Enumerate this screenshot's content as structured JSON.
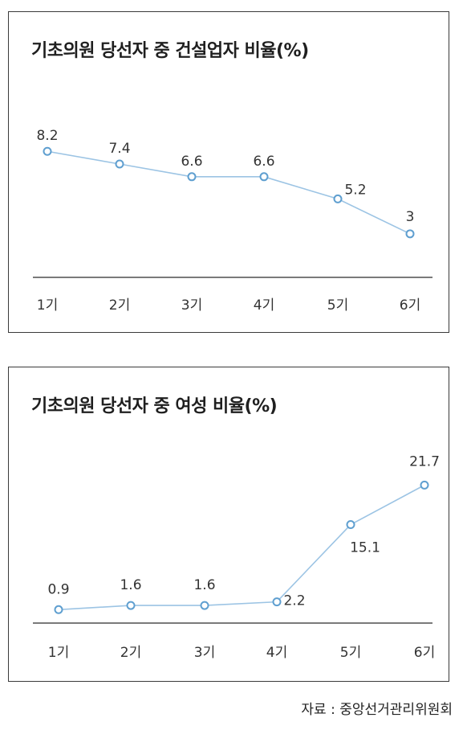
{
  "chart_data": [
    {
      "type": "line",
      "title": "기초의원 당선자 중 건설업자 비율(%)",
      "categories": [
        "1기",
        "2기",
        "3기",
        "4기",
        "5기",
        "6기"
      ],
      "values": [
        8.2,
        7.4,
        6.6,
        6.6,
        5.2,
        3
      ],
      "value_labels": [
        "8.2",
        "7.4",
        "6.6",
        "6.6",
        "5.2",
        "3"
      ],
      "ylim": [
        0,
        11
      ],
      "grid": false,
      "colors": {
        "line": "#9cc4e4",
        "marker": "#5f9fd0"
      }
    },
    {
      "type": "line",
      "title": "기초의원 당선자 중 여성 비율(%)",
      "categories": [
        "1기",
        "2기",
        "3기",
        "4기",
        "5기",
        "6기"
      ],
      "values": [
        0.9,
        1.6,
        1.6,
        2.2,
        15.1,
        21.7
      ],
      "value_labels": [
        "0.9",
        "1.6",
        "1.6",
        "2.2",
        "15.1",
        "21.7"
      ],
      "ylim": [
        0,
        29
      ],
      "grid": false,
      "colors": {
        "line": "#9cc4e4",
        "marker": "#5f9fd0"
      }
    }
  ],
  "source": "자료 : 중앙선거관리위원회"
}
